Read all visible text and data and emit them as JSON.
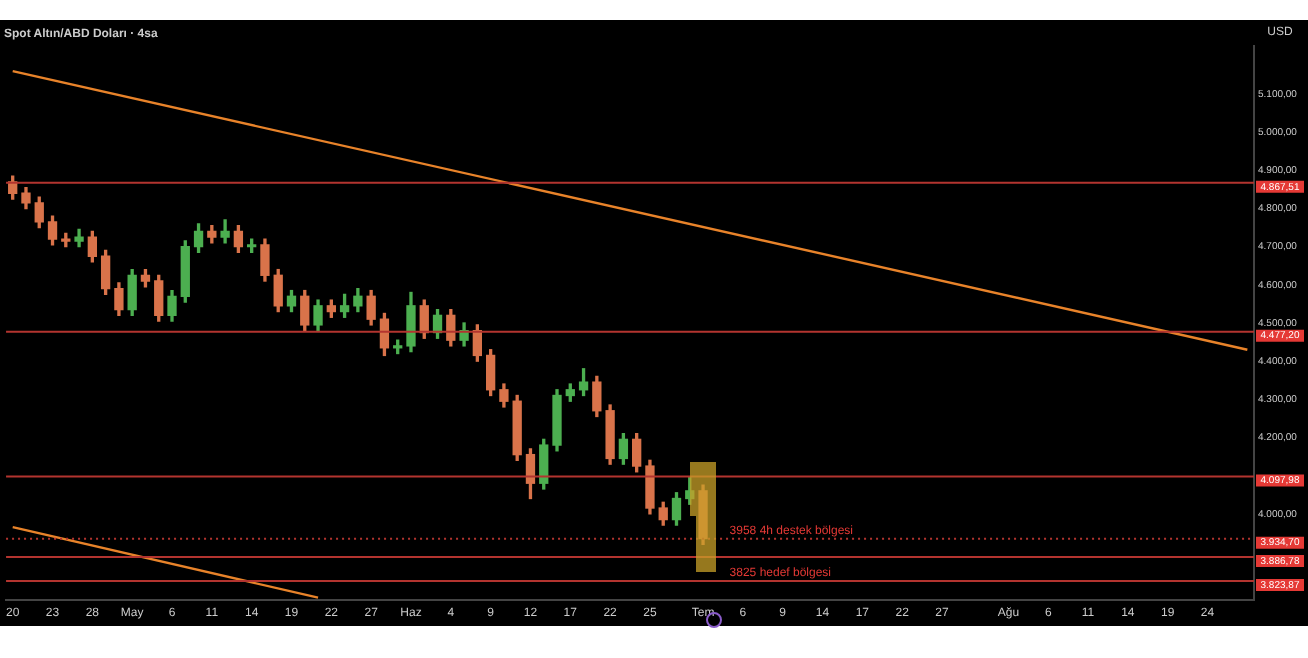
{
  "chart_data": {
    "type": "candlestick",
    "title": "Spot Altın/ABD Doları · 4sa",
    "ylabel": "USD",
    "categories": [
      "20",
      null,
      null,
      "23",
      null,
      null,
      "28",
      null,
      null,
      "May",
      null,
      null,
      "6",
      null,
      null,
      "11",
      null,
      null,
      "14",
      null,
      null,
      "19",
      null,
      null,
      "22",
      null,
      null,
      "27",
      null,
      null,
      "Haz",
      null,
      null,
      "4",
      null,
      null,
      "9",
      null,
      null,
      "12",
      null,
      null,
      "17",
      null,
      null,
      "22",
      null,
      null,
      "25",
      null,
      null,
      null,
      "Tem",
      null,
      null,
      "6",
      null,
      null,
      "9",
      null,
      null,
      "14",
      null,
      null,
      "17",
      null,
      null,
      "22",
      null,
      null,
      "27",
      null,
      null,
      null,
      null,
      "Ağu",
      null,
      null,
      "6",
      null,
      null,
      "11",
      null,
      null,
      "14",
      null,
      null,
      "19",
      null,
      null,
      "24",
      null,
      null,
      null
    ],
    "ohlc": [
      [
        4870,
        4885,
        4825,
        4840
      ],
      [
        4840,
        4855,
        4800,
        4815
      ],
      [
        4815,
        4830,
        4750,
        4765
      ],
      [
        4765,
        4780,
        4705,
        4720
      ],
      [
        4720,
        4735,
        4700,
        4715
      ],
      [
        4715,
        4745,
        4700,
        4725
      ],
      [
        4725,
        4740,
        4660,
        4675
      ],
      [
        4675,
        4690,
        4575,
        4590
      ],
      [
        4590,
        4605,
        4520,
        4535
      ],
      [
        4535,
        4640,
        4520,
        4625
      ],
      [
        4625,
        4640,
        4595,
        4610
      ],
      [
        4610,
        4625,
        4505,
        4520
      ],
      [
        4520,
        4585,
        4505,
        4570
      ],
      [
        4570,
        4715,
        4555,
        4700
      ],
      [
        4700,
        4760,
        4685,
        4740
      ],
      [
        4740,
        4755,
        4710,
        4725
      ],
      [
        4725,
        4770,
        4710,
        4740
      ],
      [
        4740,
        4755,
        4685,
        4700
      ],
      [
        4700,
        4720,
        4685,
        4705
      ],
      [
        4705,
        4720,
        4610,
        4625
      ],
      [
        4625,
        4640,
        4530,
        4545
      ],
      [
        4545,
        4585,
        4530,
        4570
      ],
      [
        4570,
        4585,
        4480,
        4495
      ],
      [
        4495,
        4560,
        4480,
        4545
      ],
      [
        4545,
        4560,
        4515,
        4530
      ],
      [
        4530,
        4575,
        4515,
        4545
      ],
      [
        4545,
        4590,
        4530,
        4570
      ],
      [
        4570,
        4585,
        4495,
        4510
      ],
      [
        4510,
        4525,
        4415,
        4435
      ],
      [
        4435,
        4455,
        4420,
        4440
      ],
      [
        4440,
        4580,
        4425,
        4545
      ],
      [
        4545,
        4560,
        4460,
        4475
      ],
      [
        4475,
        4535,
        4460,
        4520
      ],
      [
        4520,
        4535,
        4440,
        4455
      ],
      [
        4455,
        4500,
        4440,
        4480
      ],
      [
        4480,
        4495,
        4400,
        4415
      ],
      [
        4415,
        4430,
        4310,
        4325
      ],
      [
        4325,
        4340,
        4280,
        4295
      ],
      [
        4295,
        4310,
        4140,
        4155
      ],
      [
        4155,
        4170,
        4040,
        4080
      ],
      [
        4080,
        4195,
        4065,
        4180
      ],
      [
        4180,
        4325,
        4165,
        4310
      ],
      [
        4310,
        4340,
        4295,
        4325
      ],
      [
        4325,
        4380,
        4310,
        4345
      ],
      [
        4345,
        4360,
        4255,
        4270
      ],
      [
        4270,
        4285,
        4130,
        4145
      ],
      [
        4145,
        4210,
        4130,
        4195
      ],
      [
        4195,
        4210,
        4110,
        4125
      ],
      [
        4125,
        4140,
        4000,
        4015
      ],
      [
        4015,
        4030,
        3970,
        3985
      ],
      [
        3985,
        4055,
        3970,
        4040
      ],
      [
        4040,
        4095,
        4025,
        4060
      ],
      [
        4060,
        4075,
        3920,
        3935
      ],
      null,
      null,
      null,
      null,
      null,
      null,
      null,
      null,
      null,
      null,
      null,
      null,
      null,
      null,
      null,
      null,
      null,
      null,
      null,
      null,
      null,
      null,
      null,
      null,
      null,
      null,
      null,
      null,
      null,
      null,
      null,
      null,
      null,
      null,
      null,
      null,
      null,
      null,
      null,
      null,
      null
    ],
    "colors": [
      "#d9734a",
      "#d9734a",
      "#d9734a",
      "#d9734a",
      "#d9734a",
      "#4caf50",
      "#d9734a",
      "#d9734a",
      "#d9734a",
      "#4caf50",
      "#d9734a",
      "#d9734a",
      "#4caf50",
      "#4caf50",
      "#4caf50",
      "#d9734a",
      "#4caf50",
      "#d9734a",
      "#4caf50",
      "#d9734a",
      "#d9734a",
      "#4caf50",
      "#d9734a",
      "#4caf50",
      "#d9734a",
      "#4caf50",
      "#4caf50",
      "#d9734a",
      "#d9734a",
      "#4caf50",
      "#4caf50",
      "#d9734a",
      "#4caf50",
      "#d9734a",
      "#4caf50",
      "#d9734a",
      "#d9734a",
      "#d9734a",
      "#d9734a",
      "#d9734a",
      "#4caf50",
      "#4caf50",
      "#4caf50",
      "#4caf50",
      "#d9734a",
      "#d9734a",
      "#4caf50",
      "#d9734a",
      "#d9734a",
      "#d9734a",
      "#4caf50",
      "#4caf50",
      "#d9734a",
      null,
      null,
      null,
      null,
      null,
      null,
      null,
      null,
      null,
      null,
      null,
      null,
      null,
      null,
      null,
      null,
      null,
      null,
      null,
      null,
      null,
      null,
      null,
      null,
      null,
      null,
      null,
      null,
      null,
      null,
      null,
      null,
      null,
      null,
      null,
      null,
      null,
      null,
      null,
      null,
      null
    ],
    "series": [
      {
        "type": "line",
        "color": "#e8832a",
        "values": [
          5160,
          null,
          null,
          null,
          null,
          null,
          null,
          null,
          null,
          null,
          null,
          null,
          null,
          null,
          null,
          null,
          null,
          null,
          null,
          null,
          null,
          null,
          null,
          null,
          null,
          null,
          null,
          null,
          null,
          null,
          null,
          null,
          null,
          null,
          null,
          null,
          null,
          null,
          null,
          null,
          null,
          null,
          null,
          null,
          null,
          null,
          null,
          null,
          null,
          null,
          null,
          null,
          null,
          null,
          null,
          null,
          null,
          null,
          null,
          null,
          null,
          null,
          null,
          null,
          null,
          null,
          null,
          null,
          null,
          null,
          null,
          null,
          null,
          null,
          null,
          null,
          null,
          null,
          null,
          null,
          null,
          null,
          null,
          null,
          null,
          null,
          null,
          null,
          null,
          null,
          null,
          null,
          null,
          4430
        ]
      },
      {
        "type": "line",
        "color": "#e8832a",
        "values": [
          3965,
          null,
          null,
          null,
          null,
          null,
          null,
          null,
          null,
          null,
          null,
          null,
          null,
          null,
          null,
          null,
          null,
          null,
          null,
          null,
          null,
          null,
          null,
          3780,
          null,
          null,
          null,
          null,
          null,
          null,
          null,
          null,
          null,
          null,
          null,
          null,
          null,
          null,
          null,
          null,
          null,
          null,
          null,
          null,
          null,
          null,
          null,
          null,
          null,
          null,
          null,
          null,
          null,
          null,
          null,
          null,
          null,
          null,
          null,
          null,
          null,
          null,
          null,
          null,
          null,
          null,
          null,
          null,
          null,
          null,
          null,
          null,
          null,
          null,
          null,
          null,
          null,
          null,
          null,
          null,
          null,
          null,
          null,
          null,
          null,
          null,
          null,
          null,
          null,
          null,
          null,
          null,
          null,
          null
        ]
      }
    ],
    "ylim": [
      3775,
      5225
    ],
    "yticks": [
      {
        "value": 4000,
        "label": "4.000,00"
      },
      {
        "value": 4200,
        "label": "4.200,00"
      },
      {
        "value": 4300,
        "label": "4.300,00"
      },
      {
        "value": 4400,
        "label": "4.400,00"
      },
      {
        "value": 4500,
        "label": "4.500,00"
      },
      {
        "value": 4600,
        "label": "4.600,00"
      },
      {
        "value": 4700,
        "label": "4.700,00"
      },
      {
        "value": 4800,
        "label": "4.800,00"
      },
      {
        "value": 4900,
        "label": "4.900,00"
      },
      {
        "value": 5000,
        "label": "5.000,00"
      },
      {
        "value": 5100,
        "label": "5.100,00"
      }
    ],
    "ref_lines": [
      {
        "axis": "y",
        "value": 4867.51,
        "label": "4.867,51",
        "color": "#b3342f"
      },
      {
        "axis": "y",
        "value": 4477.2,
        "label": "4.477,20",
        "color": "#b3342f"
      },
      {
        "axis": "y",
        "value": 4097.98,
        "label": "4.097,98",
        "color": "#b3342f"
      },
      {
        "axis": "y",
        "value": 3934.7,
        "label": "3.934,70",
        "color": "#b3342f",
        "line_style": "dotted"
      },
      {
        "axis": "y",
        "value": 3886.78,
        "label": "3.886,78",
        "color": "#b3342f"
      },
      {
        "axis": "y",
        "value": 3823.87,
        "label": "3.823,87",
        "color": "#b3342f"
      }
    ],
    "annotations": [
      {
        "text": "3958 4h destek bölgesi",
        "y": 3934.7
      },
      {
        "text": "3825 hedef bölgesi",
        "y": 3823.87
      }
    ],
    "grid": false,
    "legend": false
  }
}
